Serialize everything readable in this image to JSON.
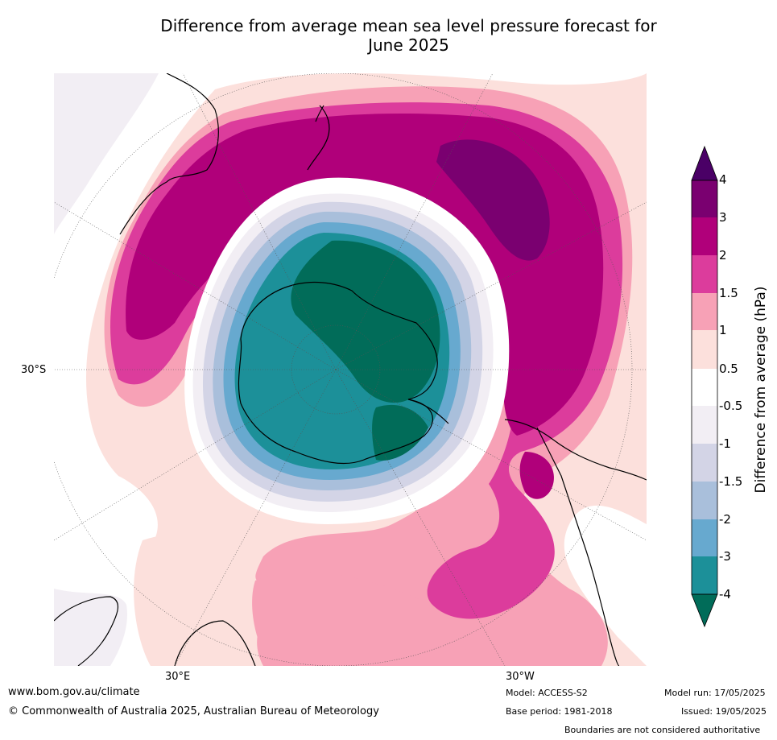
{
  "title_line1": "Difference from average mean sea level pressure forecast for",
  "title_line2": "June 2025",
  "map": {
    "lat_label": "30°S",
    "lon_label_east": "30°E",
    "lon_label_west": "30°W"
  },
  "colorbar": {
    "label": "Difference from average (hPa)",
    "ticks": [
      "4",
      "3",
      "2",
      "1.5",
      "1",
      "0.5",
      "-0.5",
      "-1",
      "-1.5",
      "-2",
      "-3",
      "-4"
    ],
    "colors": {
      "gt4": "#4a0066",
      "3_4": "#7a0070",
      "2_3": "#b0007a",
      "1.5_2": "#dc3c9c",
      "1_1.5": "#f7a1b6",
      "0.5_1": "#fce0dc",
      "neutral": "#ffffff",
      "-1_-0.5": "#f2eef4",
      "-1.5_-1": "#d3d4e6",
      "-2_-1.5": "#a9bfdb",
      "-3_-2": "#67a9cf",
      "-4_-3": "#1c9099",
      "lt-4": "#016c59"
    }
  },
  "footer": {
    "website": "www.bom.gov.au/climate",
    "copyright": "© Commonwealth of Australia 2025, Australian Bureau of Meteorology",
    "model": "Model: ACCESS-S2",
    "base_period": "Base period: 1981-2018",
    "model_run": "Model run: 17/05/2025",
    "issued": "Issued: 19/05/2025",
    "disclaimer": "Boundaries are not considered authoritative"
  }
}
